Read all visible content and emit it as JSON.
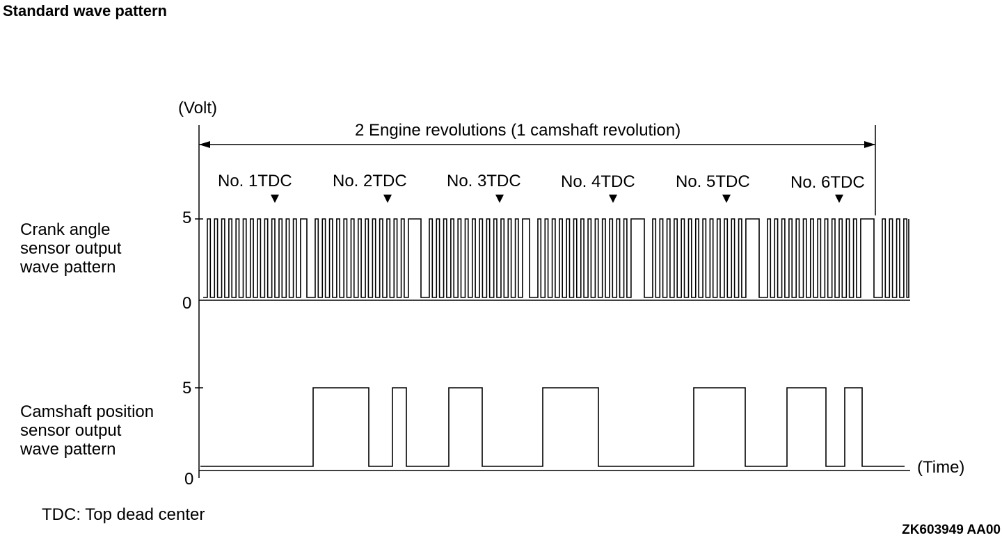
{
  "title": "Standard wave pattern",
  "y_unit": "(Volt)",
  "x_unit": "(Time)",
  "span_label": "2 Engine revolutions (1 camshaft revolution)",
  "tdc_labels": [
    "No. 1TDC",
    "No. 2TDC",
    "No. 3TDC",
    "No. 4TDC",
    "No. 5TDC",
    "No. 6TDC"
  ],
  "crank": {
    "label": [
      "Crank angle",
      "sensor output",
      "wave pattern"
    ],
    "high": "5",
    "low": "0"
  },
  "cam": {
    "label": [
      "Camshaft position",
      "sensor output",
      "wave pattern"
    ],
    "high": "5",
    "low": "0"
  },
  "footer": "TDC: Top dead center",
  "code": "ZK603949 AA00"
}
